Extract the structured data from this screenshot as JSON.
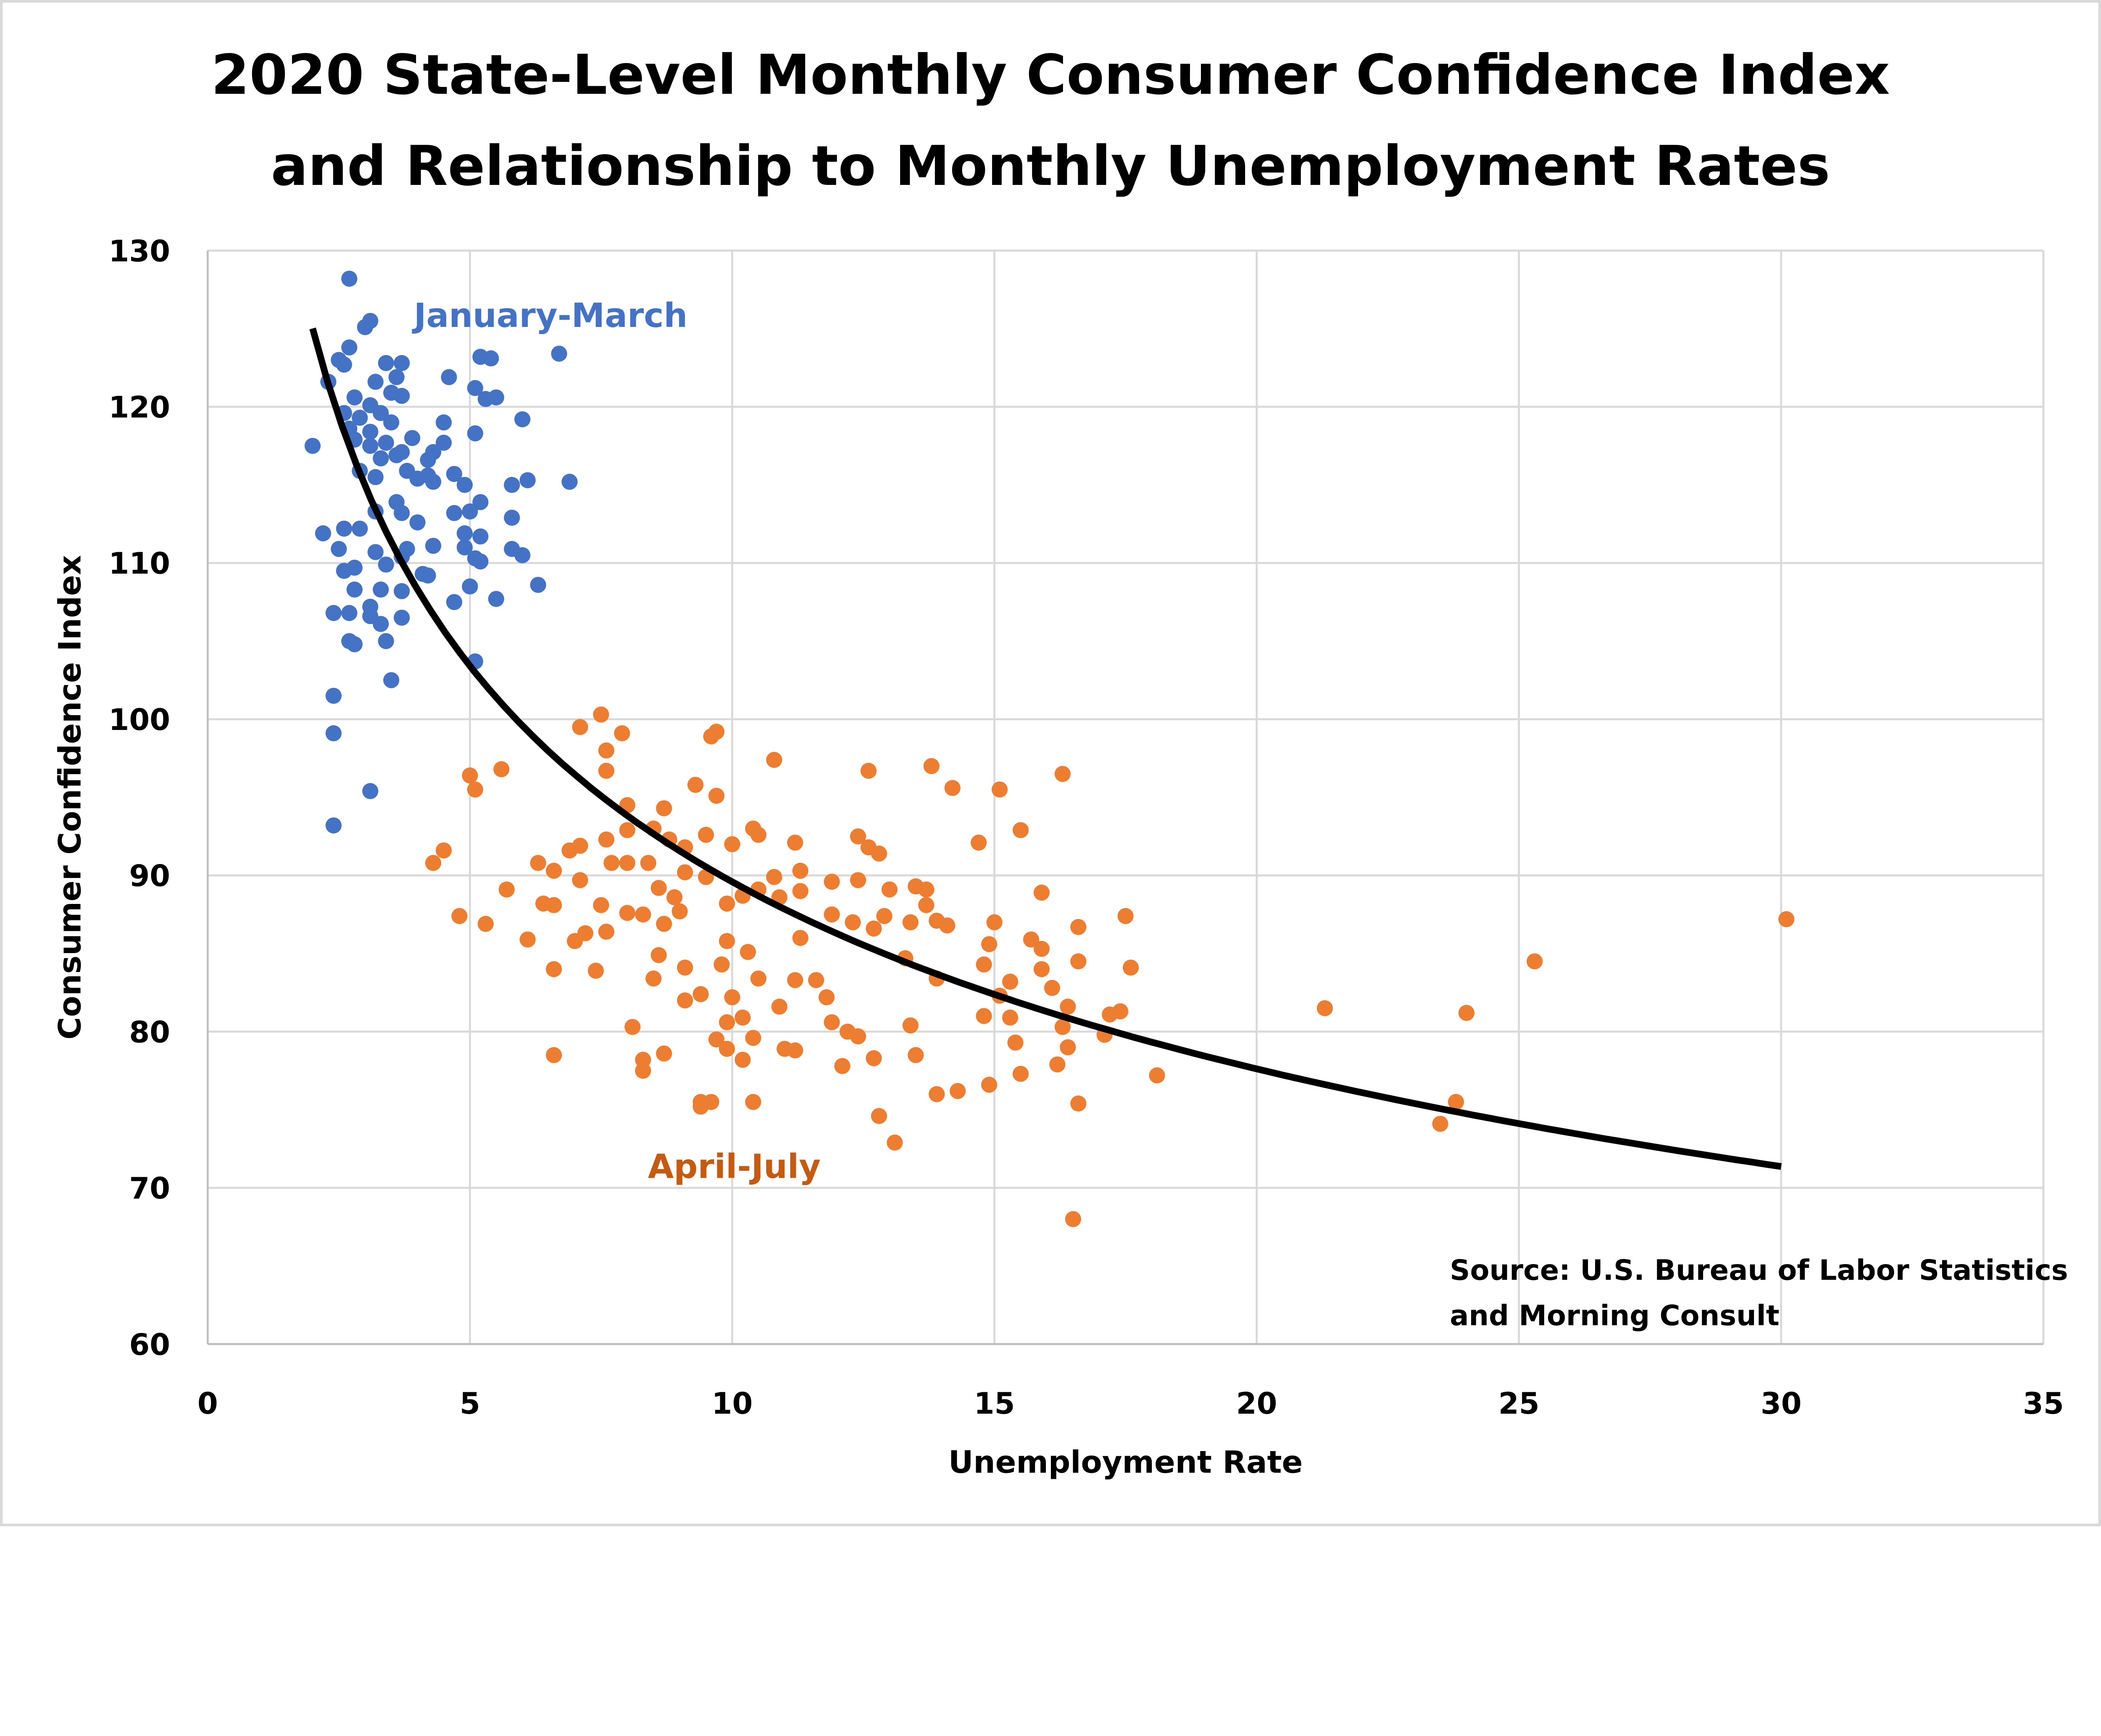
{
  "chart_data": {
    "type": "scatter",
    "title_lines": [
      "2020 State-Level Monthly Consumer Confidence Index",
      "and Relationship to Monthly Unemployment Rates"
    ],
    "xlabel": "Unemployment Rate",
    "ylabel": "Consumer Confidence Index",
    "xlim": [
      0,
      35
    ],
    "ylim": [
      60,
      130
    ],
    "xticks": [
      0,
      5,
      10,
      15,
      20,
      25,
      30,
      35
    ],
    "yticks": [
      60,
      70,
      80,
      90,
      100,
      110,
      120,
      130
    ],
    "grid": true,
    "legend": "none",
    "source_lines": [
      "Source: U.S. Bureau of Labor Statistics",
      "and Morning Consult"
    ],
    "series": [
      {
        "name": "January-March",
        "color": "#4472C4",
        "label_color": "#4472C4",
        "points": [
          [
            2.7,
            128.2
          ],
          [
            3.1,
            125.5
          ],
          [
            3.0,
            125.1
          ],
          [
            2.7,
            123.8
          ],
          [
            2.5,
            123.0
          ],
          [
            2.6,
            122.7
          ],
          [
            2.3,
            121.6
          ],
          [
            3.4,
            122.8
          ],
          [
            3.7,
            122.8
          ],
          [
            3.6,
            121.9
          ],
          [
            3.2,
            121.6
          ],
          [
            3.5,
            120.9
          ],
          [
            3.7,
            120.7
          ],
          [
            2.8,
            120.6
          ],
          [
            3.1,
            120.1
          ],
          [
            2.6,
            119.6
          ],
          [
            2.9,
            119.3
          ],
          [
            3.3,
            119.6
          ],
          [
            3.5,
            119.0
          ],
          [
            2.7,
            118.6
          ],
          [
            3.1,
            118.4
          ],
          [
            3.9,
            118.0
          ],
          [
            2.8,
            117.9
          ],
          [
            3.4,
            117.7
          ],
          [
            3.1,
            117.5
          ],
          [
            3.7,
            117.1
          ],
          [
            3.3,
            116.7
          ],
          [
            3.8,
            115.9
          ],
          [
            2.9,
            115.9
          ],
          [
            3.2,
            115.5
          ],
          [
            4.0,
            115.4
          ],
          [
            4.2,
            115.6
          ],
          [
            4.2,
            116.6
          ],
          [
            4.3,
            117.1
          ],
          [
            4.5,
            117.7
          ],
          [
            4.5,
            119.0
          ],
          [
            4.6,
            121.9
          ],
          [
            5.2,
            123.2
          ],
          [
            5.4,
            123.1
          ],
          [
            5.1,
            121.2
          ],
          [
            5.3,
            120.5
          ],
          [
            5.5,
            120.6
          ],
          [
            5.1,
            118.3
          ],
          [
            6.0,
            119.2
          ],
          [
            6.7,
            123.4
          ],
          [
            4.3,
            115.2
          ],
          [
            4.7,
            115.7
          ],
          [
            4.9,
            115.0
          ],
          [
            5.2,
            113.9
          ],
          [
            5.0,
            113.3
          ],
          [
            4.7,
            113.2
          ],
          [
            5.8,
            115.0
          ],
          [
            6.1,
            115.3
          ],
          [
            6.9,
            115.2
          ],
          [
            5.8,
            112.9
          ],
          [
            5.2,
            111.7
          ],
          [
            4.9,
            111.9
          ],
          [
            4.9,
            111.0
          ],
          [
            5.1,
            110.3
          ],
          [
            5.8,
            110.9
          ],
          [
            6.0,
            110.5
          ],
          [
            5.2,
            110.1
          ],
          [
            4.3,
            111.1
          ],
          [
            4.0,
            112.6
          ],
          [
            3.7,
            113.2
          ],
          [
            3.6,
            113.9
          ],
          [
            3.2,
            113.3
          ],
          [
            2.9,
            112.2
          ],
          [
            2.6,
            112.2
          ],
          [
            2.2,
            111.9
          ],
          [
            2.5,
            110.9
          ],
          [
            2.6,
            109.5
          ],
          [
            2.8,
            109.7
          ],
          [
            3.2,
            110.7
          ],
          [
            3.4,
            109.9
          ],
          [
            3.7,
            110.4
          ],
          [
            3.8,
            110.9
          ],
          [
            4.1,
            109.3
          ],
          [
            4.2,
            109.2
          ],
          [
            5.0,
            108.5
          ],
          [
            4.7,
            107.5
          ],
          [
            5.5,
            107.7
          ],
          [
            6.3,
            108.6
          ],
          [
            3.3,
            108.3
          ],
          [
            3.7,
            108.2
          ],
          [
            2.8,
            108.3
          ],
          [
            3.1,
            107.2
          ],
          [
            2.7,
            106.8
          ],
          [
            2.4,
            106.8
          ],
          [
            3.7,
            106.5
          ],
          [
            3.3,
            106.1
          ],
          [
            2.7,
            105.0
          ],
          [
            2.8,
            104.8
          ],
          [
            3.4,
            105.0
          ],
          [
            5.1,
            103.7
          ],
          [
            3.5,
            102.5
          ],
          [
            2.4,
            101.5
          ],
          [
            2.4,
            99.1
          ],
          [
            3.1,
            95.4
          ],
          [
            2.4,
            93.2
          ],
          [
            2.0,
            117.5
          ],
          [
            3.1,
            106.6
          ],
          [
            3.6,
            116.9
          ]
        ]
      },
      {
        "name": "April-July",
        "color": "#ED7D31",
        "label_color": "#C55A11",
        "points": [
          [
            7.5,
            100.3
          ],
          [
            7.1,
            99.5
          ],
          [
            7.9,
            99.1
          ],
          [
            9.7,
            99.2
          ],
          [
            9.6,
            98.9
          ],
          [
            7.6,
            98.0
          ],
          [
            7.6,
            96.7
          ],
          [
            10.8,
            97.4
          ],
          [
            13.8,
            97.0
          ],
          [
            12.6,
            96.7
          ],
          [
            16.3,
            96.5
          ],
          [
            5.0,
            96.4
          ],
          [
            5.6,
            96.8
          ],
          [
            5.1,
            95.5
          ],
          [
            9.3,
            95.8
          ],
          [
            9.7,
            95.1
          ],
          [
            14.2,
            95.6
          ],
          [
            15.1,
            95.5
          ],
          [
            8.0,
            94.5
          ],
          [
            8.7,
            94.3
          ],
          [
            15.5,
            92.9
          ],
          [
            4.5,
            91.6
          ],
          [
            4.3,
            90.8
          ],
          [
            6.3,
            90.8
          ],
          [
            6.6,
            90.3
          ],
          [
            6.9,
            91.6
          ],
          [
            7.1,
            91.9
          ],
          [
            7.6,
            92.3
          ],
          [
            8.0,
            92.9
          ],
          [
            8.5,
            93.0
          ],
          [
            8.8,
            92.3
          ],
          [
            9.1,
            91.8
          ],
          [
            9.5,
            92.6
          ],
          [
            10.0,
            92.0
          ],
          [
            10.4,
            93.0
          ],
          [
            10.5,
            92.6
          ],
          [
            11.2,
            92.1
          ],
          [
            12.4,
            92.5
          ],
          [
            12.6,
            91.8
          ],
          [
            12.8,
            91.4
          ],
          [
            14.7,
            92.1
          ],
          [
            7.7,
            90.8
          ],
          [
            8.0,
            90.8
          ],
          [
            8.4,
            90.8
          ],
          [
            9.1,
            90.2
          ],
          [
            9.5,
            89.9
          ],
          [
            10.5,
            89.1
          ],
          [
            10.8,
            89.9
          ],
          [
            11.3,
            90.3
          ],
          [
            11.9,
            89.6
          ],
          [
            12.4,
            89.7
          ],
          [
            13.0,
            89.1
          ],
          [
            13.5,
            89.3
          ],
          [
            13.7,
            89.1
          ],
          [
            15.9,
            88.9
          ],
          [
            5.7,
            89.1
          ],
          [
            6.4,
            88.2
          ],
          [
            6.6,
            88.1
          ],
          [
            7.1,
            89.7
          ],
          [
            7.5,
            88.1
          ],
          [
            8.0,
            87.6
          ],
          [
            8.6,
            89.2
          ],
          [
            8.9,
            88.6
          ],
          [
            9.0,
            87.7
          ],
          [
            9.9,
            88.2
          ],
          [
            10.2,
            88.7
          ],
          [
            10.9,
            88.6
          ],
          [
            11.3,
            89.0
          ],
          [
            11.9,
            87.5
          ],
          [
            12.9,
            87.4
          ],
          [
            13.4,
            87.0
          ],
          [
            13.7,
            88.1
          ],
          [
            13.9,
            87.1
          ],
          [
            15.0,
            87.0
          ],
          [
            15.7,
            85.9
          ],
          [
            16.6,
            86.7
          ],
          [
            17.5,
            87.4
          ],
          [
            4.8,
            87.4
          ],
          [
            5.3,
            86.9
          ],
          [
            6.1,
            85.9
          ],
          [
            7.0,
            85.8
          ],
          [
            7.2,
            86.3
          ],
          [
            7.6,
            86.4
          ],
          [
            8.3,
            87.5
          ],
          [
            8.7,
            86.9
          ],
          [
            9.9,
            85.8
          ],
          [
            10.3,
            85.1
          ],
          [
            11.3,
            86.0
          ],
          [
            12.3,
            87.0
          ],
          [
            12.7,
            86.6
          ],
          [
            14.1,
            86.8
          ],
          [
            14.9,
            85.6
          ],
          [
            15.9,
            85.3
          ],
          [
            6.6,
            84.0
          ],
          [
            7.4,
            83.9
          ],
          [
            8.6,
            84.9
          ],
          [
            9.1,
            84.1
          ],
          [
            9.8,
            84.3
          ],
          [
            10.5,
            83.4
          ],
          [
            11.2,
            83.3
          ],
          [
            11.6,
            83.3
          ],
          [
            13.3,
            84.7
          ],
          [
            13.9,
            83.4
          ],
          [
            14.8,
            84.3
          ],
          [
            15.3,
            83.2
          ],
          [
            15.9,
            84.0
          ],
          [
            16.6,
            84.5
          ],
          [
            17.6,
            84.1
          ],
          [
            25.3,
            84.5
          ],
          [
            8.5,
            83.4
          ],
          [
            9.4,
            82.4
          ],
          [
            10.0,
            82.2
          ],
          [
            9.1,
            82.0
          ],
          [
            10.9,
            81.6
          ],
          [
            11.8,
            82.2
          ],
          [
            15.1,
            82.3
          ],
          [
            16.1,
            82.8
          ],
          [
            16.4,
            81.6
          ],
          [
            17.2,
            81.1
          ],
          [
            17.4,
            81.3
          ],
          [
            21.3,
            81.5
          ],
          [
            24.0,
            81.2
          ],
          [
            9.9,
            80.6
          ],
          [
            10.2,
            80.9
          ],
          [
            11.9,
            80.6
          ],
          [
            12.2,
            80.0
          ],
          [
            12.4,
            79.7
          ],
          [
            13.4,
            80.4
          ],
          [
            14.8,
            81.0
          ],
          [
            15.3,
            80.9
          ],
          [
            16.3,
            80.3
          ],
          [
            8.1,
            80.3
          ],
          [
            9.7,
            79.5
          ],
          [
            10.4,
            79.6
          ],
          [
            15.4,
            79.3
          ],
          [
            17.1,
            79.8
          ],
          [
            6.6,
            78.5
          ],
          [
            8.3,
            78.2
          ],
          [
            8.7,
            78.6
          ],
          [
            9.9,
            78.9
          ],
          [
            10.2,
            78.2
          ],
          [
            11.0,
            78.9
          ],
          [
            11.2,
            78.8
          ],
          [
            12.7,
            78.3
          ],
          [
            13.5,
            78.5
          ],
          [
            16.2,
            77.9
          ],
          [
            16.4,
            79.0
          ],
          [
            12.1,
            77.8
          ],
          [
            8.3,
            77.5
          ],
          [
            15.5,
            77.3
          ],
          [
            18.1,
            77.2
          ],
          [
            14.9,
            76.6
          ],
          [
            14.3,
            76.2
          ],
          [
            13.9,
            76.0
          ],
          [
            9.4,
            75.5
          ],
          [
            9.6,
            75.5
          ],
          [
            10.4,
            75.5
          ],
          [
            9.4,
            75.2
          ],
          [
            16.6,
            75.4
          ],
          [
            23.8,
            75.5
          ],
          [
            12.8,
            74.6
          ],
          [
            23.5,
            74.1
          ],
          [
            13.1,
            72.9
          ],
          [
            16.5,
            68.0
          ],
          [
            30.1,
            87.2
          ]
        ]
      }
    ],
    "trendline": {
      "type": "power",
      "a": 144.3,
      "b": -0.207,
      "x_range": [
        2,
        30
      ],
      "color": "#000000"
    }
  }
}
